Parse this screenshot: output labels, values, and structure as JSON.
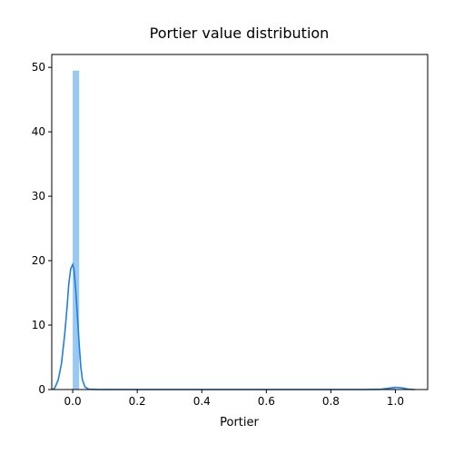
{
  "chart_data": {
    "type": "histogram+kde",
    "title": "Portier value distribution",
    "xlabel": "Portier",
    "ylabel": "",
    "xlim": [
      -0.065,
      1.1
    ],
    "ylim": [
      0,
      52
    ],
    "x_ticks": [
      {
        "value": 0.0,
        "label": "0.0"
      },
      {
        "value": 0.2,
        "label": "0.2"
      },
      {
        "value": 0.4,
        "label": "0.4"
      },
      {
        "value": 0.6,
        "label": "0.6"
      },
      {
        "value": 0.8,
        "label": "0.8"
      },
      {
        "value": 1.0,
        "label": "1.0"
      }
    ],
    "y_ticks": [
      {
        "value": 0,
        "label": "0"
      },
      {
        "value": 10,
        "label": "10"
      },
      {
        "value": 20,
        "label": "20"
      },
      {
        "value": 30,
        "label": "30"
      },
      {
        "value": 40,
        "label": "40"
      },
      {
        "value": 50,
        "label": "50"
      }
    ],
    "histogram": {
      "color": "#99c8f0",
      "bins": [
        {
          "x0": 0.0,
          "x1": 0.02,
          "height": 49.5
        },
        {
          "x0": 0.98,
          "x1": 1.0,
          "height": 0.35
        }
      ]
    },
    "kde": {
      "color": "#1f7fdc",
      "points": [
        [
          -0.062,
          0.02
        ],
        [
          -0.055,
          0.3
        ],
        [
          -0.045,
          1.5
        ],
        [
          -0.035,
          4.0
        ],
        [
          -0.025,
          8.5
        ],
        [
          -0.018,
          12.5
        ],
        [
          -0.012,
          16.5
        ],
        [
          -0.006,
          18.8
        ],
        [
          0.0,
          19.4
        ],
        [
          0.004,
          18.6
        ],
        [
          0.01,
          15.0
        ],
        [
          0.015,
          11.0
        ],
        [
          0.02,
          7.0
        ],
        [
          0.025,
          3.5
        ],
        [
          0.03,
          1.5
        ],
        [
          0.038,
          0.4
        ],
        [
          0.05,
          0.05
        ],
        [
          0.08,
          0.0
        ],
        [
          0.9,
          0.0
        ],
        [
          0.95,
          0.02
        ],
        [
          0.98,
          0.2
        ],
        [
          1.0,
          0.35
        ],
        [
          1.02,
          0.25
        ],
        [
          1.04,
          0.06
        ],
        [
          1.06,
          0.0
        ]
      ]
    }
  }
}
